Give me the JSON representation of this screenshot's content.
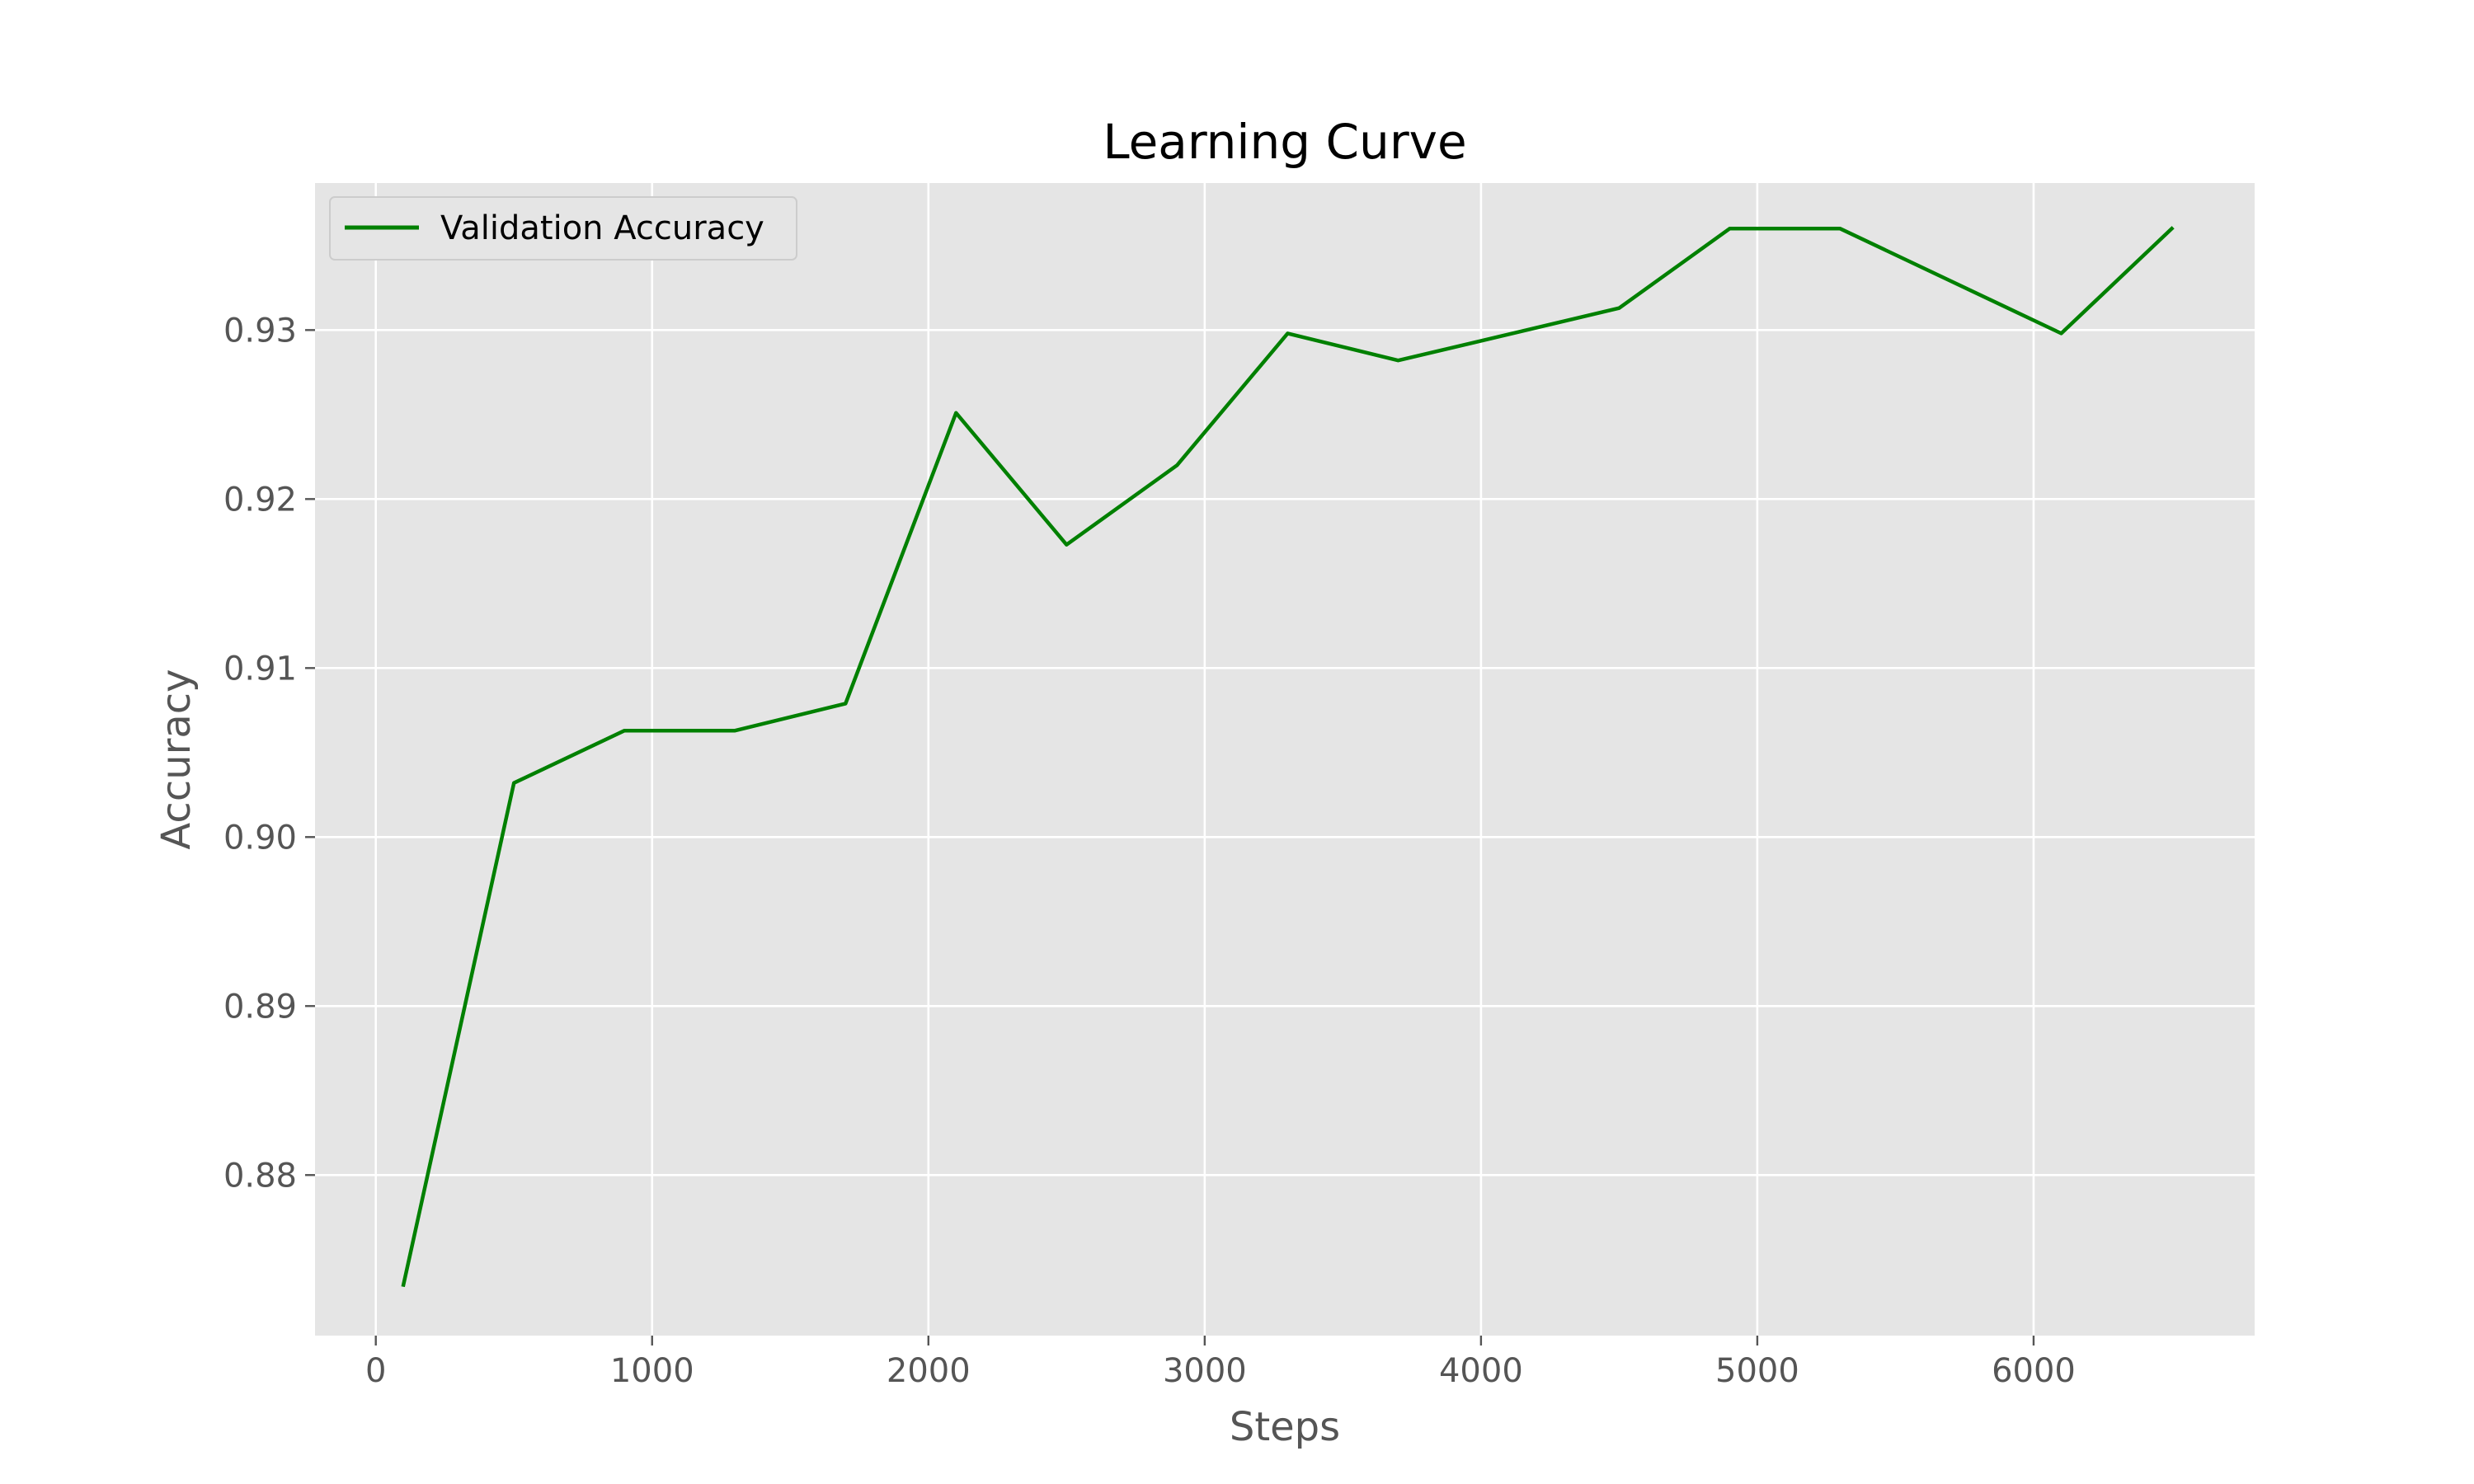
{
  "chart_data": {
    "type": "line",
    "title": "Learning Curve",
    "xlabel": "Steps",
    "ylabel": "Accuracy",
    "xlim": [
      -220,
      6800
    ],
    "ylim": [
      0.8705,
      0.9387
    ],
    "xticks": [
      0,
      1000,
      2000,
      3000,
      4000,
      5000,
      6000
    ],
    "yticks": [
      0.88,
      0.89,
      0.9,
      0.91,
      0.92,
      0.93
    ],
    "ytick_labels": [
      "0.88",
      "0.89",
      "0.90",
      "0.91",
      "0.92",
      "0.93"
    ],
    "grid": true,
    "legend_position": "upper-left",
    "series": [
      {
        "name": "Validation Accuracy",
        "color": "#008000",
        "x": [
          100,
          500,
          900,
          1300,
          1700,
          2100,
          2500,
          2900,
          3300,
          3700,
          4500,
          4900,
          5300,
          6100,
          6500
        ],
        "y": [
          0.8735,
          0.9032,
          0.9063,
          0.9063,
          0.9079,
          0.9251,
          0.9173,
          0.922,
          0.9298,
          0.9282,
          0.9313,
          0.936,
          0.936,
          0.9298,
          0.936
        ]
      }
    ]
  }
}
